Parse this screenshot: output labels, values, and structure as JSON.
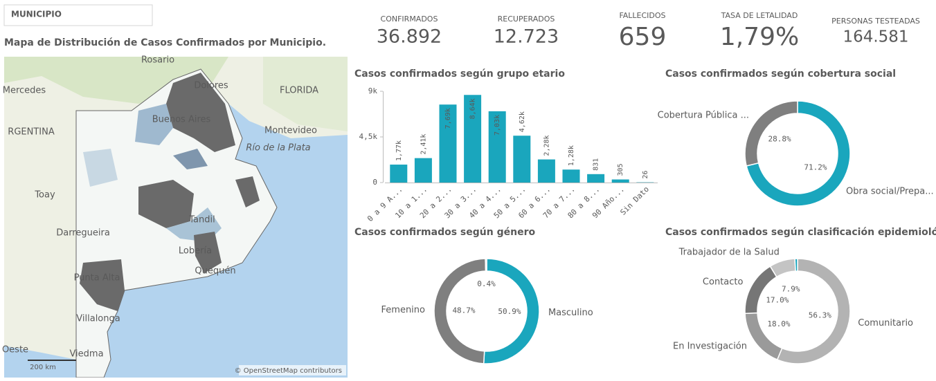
{
  "filter": {
    "label": "MUNICIPIO"
  },
  "map": {
    "title": "Mapa de Distribución de Casos Confirmados por Municipio.",
    "places": [
      "Rosario",
      "Mercedes",
      "Dolores",
      "FLORIDA",
      "RGENTINA",
      "Buenos Aires",
      "Montevideo",
      "Río de la Plata",
      "Toay",
      "Darregueira",
      "Tandil",
      "Lobería",
      "Quequén",
      "Punta Alta",
      "Villalonga",
      "Oeste",
      "Viedma"
    ],
    "scale": "200 km",
    "attribution": "© OpenStreetMap contributors"
  },
  "kpis": [
    {
      "label": "CONFIRMADOS",
      "value": "36.892"
    },
    {
      "label": "RECUPERADOS",
      "value": "12.723"
    },
    {
      "label": "FALLECIDOS",
      "value": "659"
    },
    {
      "label": "TASA DE LETALIDAD",
      "value": "1,79%"
    },
    {
      "label": "PERSONAS TESTEADAS",
      "value": "164.581"
    }
  ],
  "chart_data": [
    {
      "type": "bar",
      "title": "Casos confirmados según grupo etario",
      "categories": [
        "0 a 9 A...",
        "10 a 1...",
        "20 a 2...",
        "30 a 3...",
        "40 a 4...",
        "50 a 5...",
        "60 a 6...",
        "70 a 7...",
        "80 a 8...",
        "90 Año...",
        "Sin Dato"
      ],
      "values": [
        1770,
        2410,
        7690,
        8640,
        7030,
        4620,
        2280,
        1280,
        831,
        305,
        26
      ],
      "value_labels": [
        "1,77k",
        "2,41k",
        "7,69k",
        "8,64k",
        "7,03k",
        "4,62k",
        "2,28k",
        "1,28k",
        "831",
        "305",
        "26"
      ],
      "color": "#1aa6bd",
      "ylim": [
        0,
        9000
      ],
      "yticks": [
        0,
        {
          "value": 4500,
          "label": "4,5k"
        },
        {
          "value": 9000,
          "label": "9k"
        }
      ]
    },
    {
      "type": "pie",
      "title": "Casos confirmados según cobertura social",
      "categories": [
        "Obra social/Prepa...",
        "Cobertura Pública ..."
      ],
      "values": [
        71.2,
        28.8
      ],
      "value_labels": [
        "71.2%",
        "28.8%"
      ],
      "colors": [
        "#1aa6bd",
        "#7f7f7f"
      ]
    },
    {
      "type": "pie",
      "title": "Casos confirmados según género",
      "categories": [
        "Masculino",
        "Femenino",
        null
      ],
      "values": [
        50.9,
        48.7,
        0.4
      ],
      "value_labels": [
        "50.9%",
        "48.7%",
        "0.4%"
      ],
      "colors": [
        "#1aa6bd",
        "#7f7f7f",
        "#d0d0d0"
      ]
    },
    {
      "type": "pie",
      "title": "Casos confirmados según clasificación epidemiológica",
      "categories": [
        "Comunitario",
        "En Investigación",
        "Contacto",
        "Trabajador de la Salud",
        null
      ],
      "values": [
        56.3,
        18.0,
        17.0,
        7.9,
        0.8
      ],
      "value_labels": [
        "56.3%",
        "18.0%",
        "17.0%",
        "7.9%",
        null
      ],
      "colors": [
        "#b3b3b3",
        "#9a9a9a",
        "#767676",
        "#c4c4c4",
        "#1aa6bd"
      ]
    }
  ]
}
